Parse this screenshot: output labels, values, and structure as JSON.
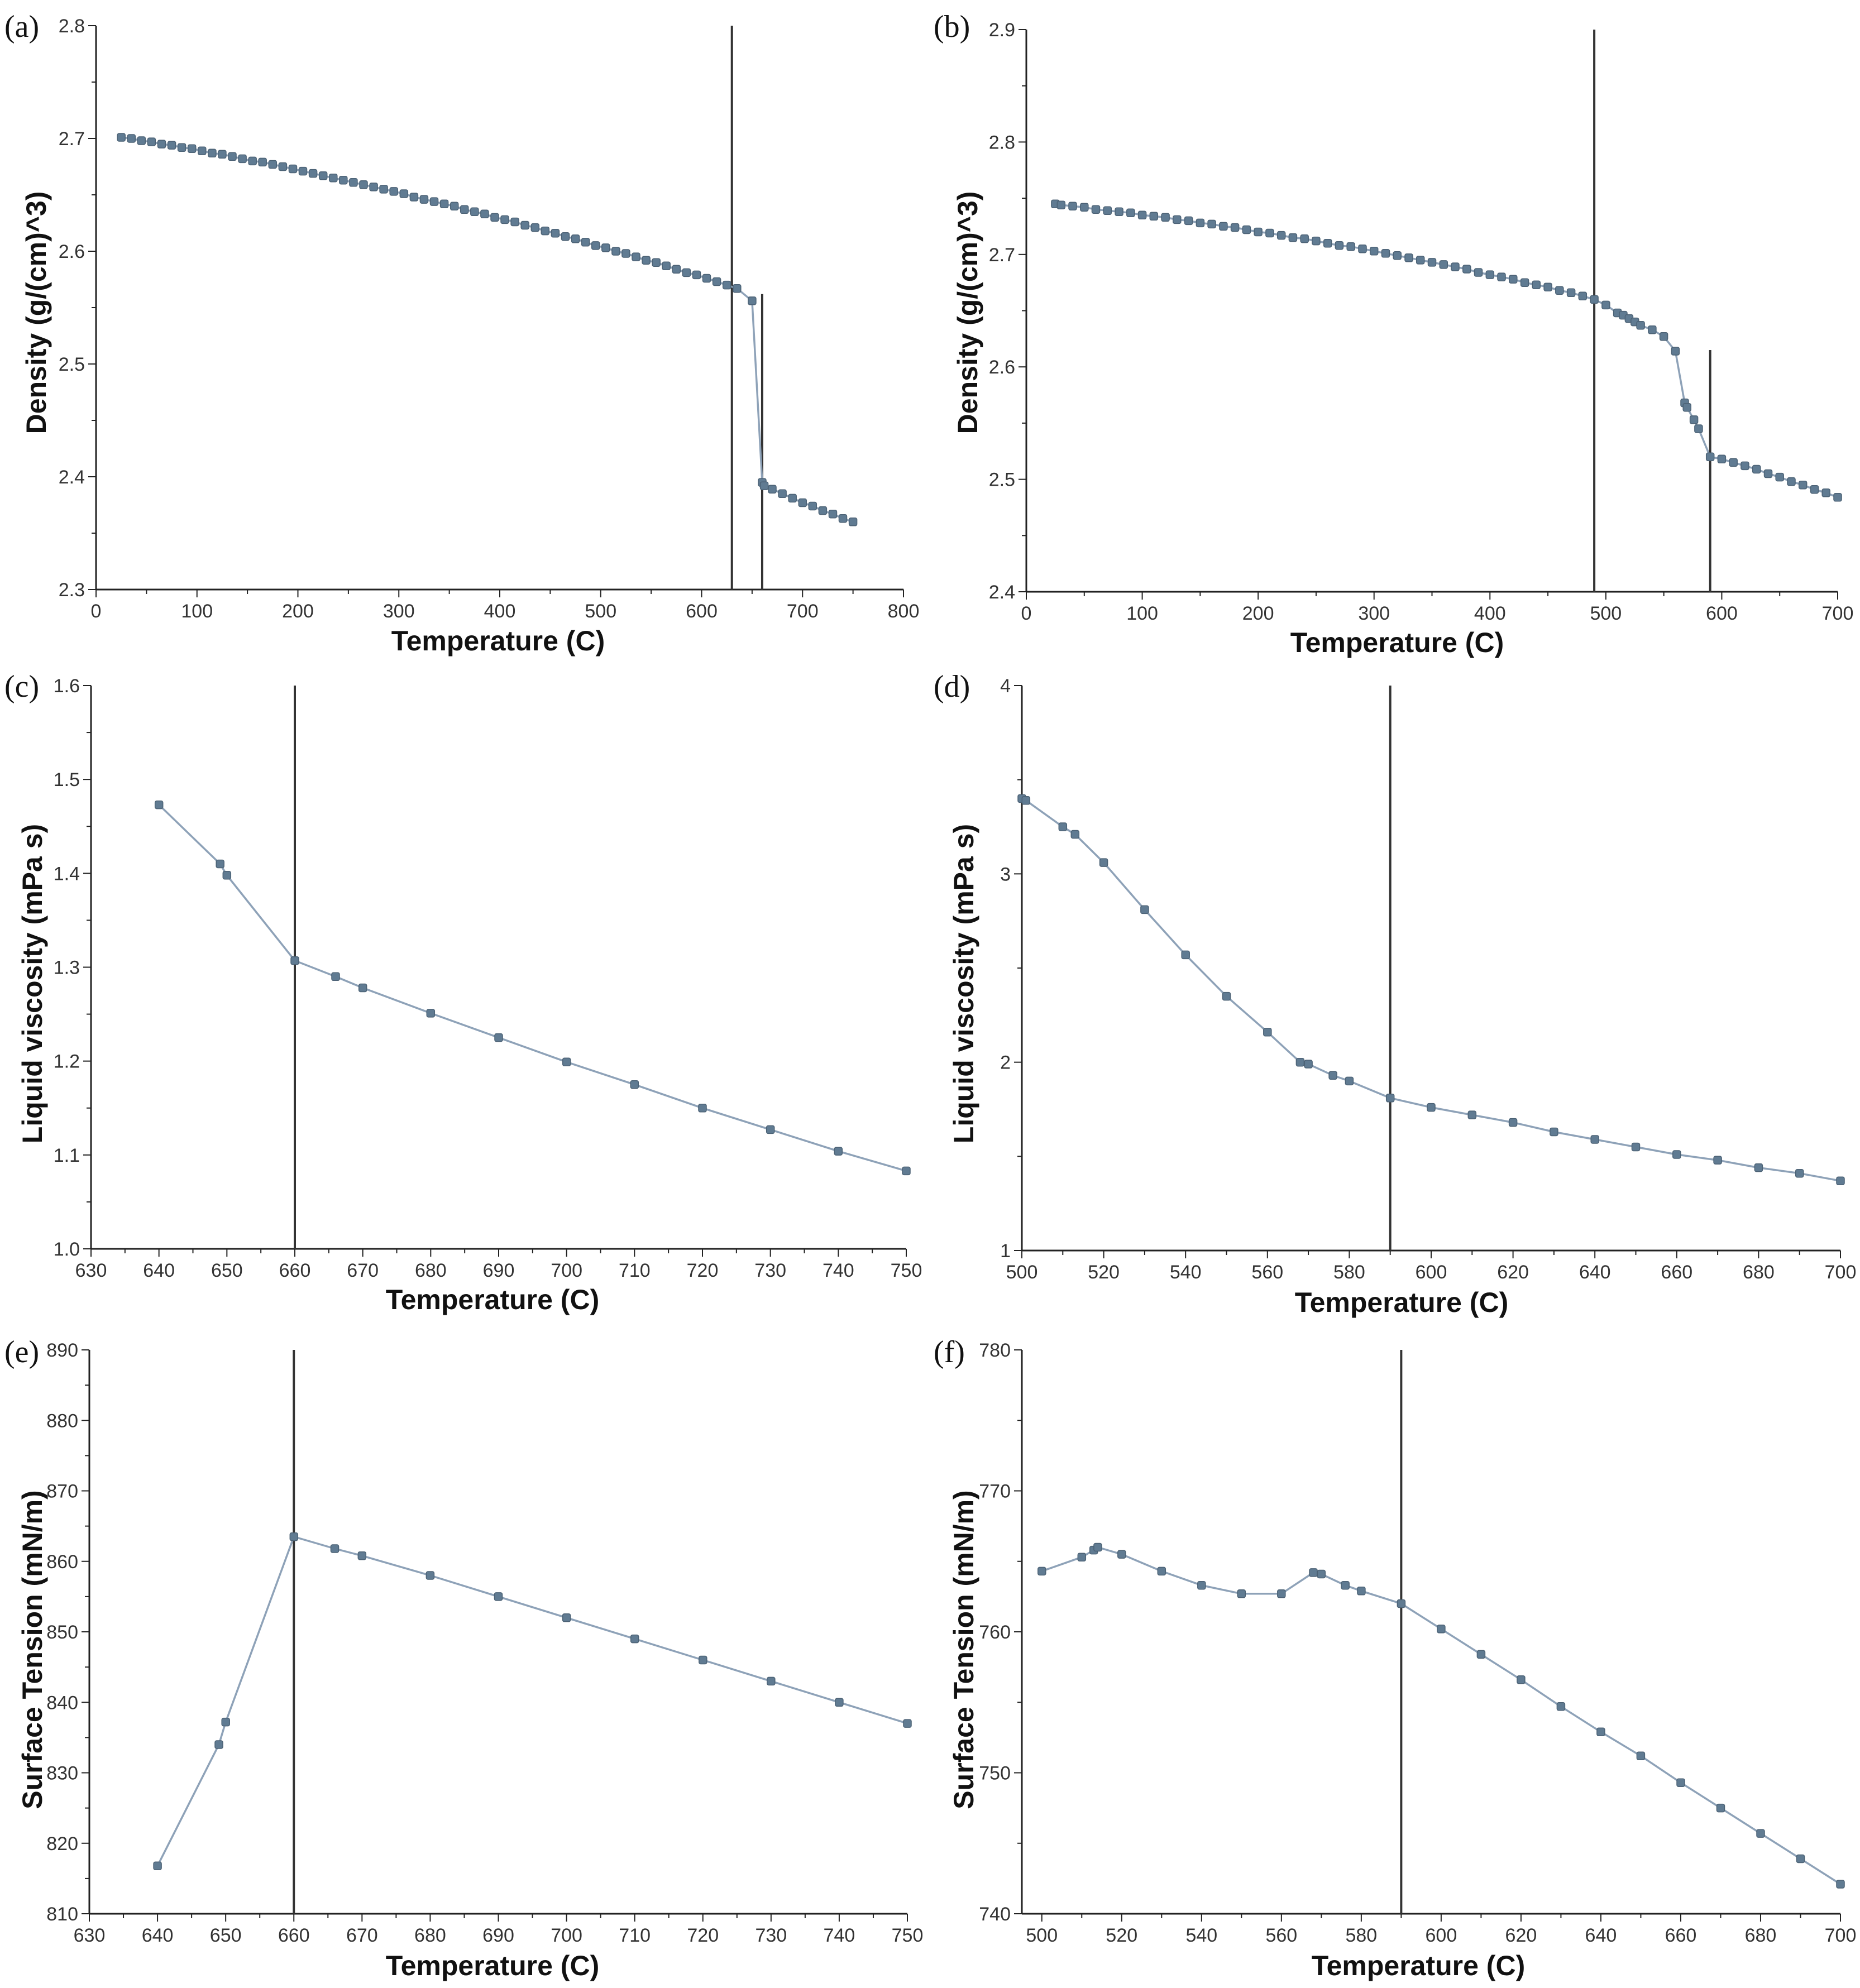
{
  "figure": {
    "panels": [
      {
        "letter": "(a)",
        "xlabel": "Temperature (C)",
        "ylabel": "Density (g/(cm)^3)"
      },
      {
        "letter": "(b)",
        "xlabel": "Temperature (C)",
        "ylabel": "Density (g/(cm)^3)"
      },
      {
        "letter": "(c)",
        "xlabel": "Temperature (C)",
        "ylabel": "Liquid viscosity (mPa s)"
      },
      {
        "letter": "(d)",
        "xlabel": "Temperature (C)",
        "ylabel": "Liquid viscosity (mPa s)"
      },
      {
        "letter": "(e)",
        "xlabel": "Temperature (C)",
        "ylabel": "Surface Tension (mN/m)"
      },
      {
        "letter": "(f)",
        "xlabel": "Temperature (C)",
        "ylabel": "Surface Tension (mN/m)"
      }
    ]
  },
  "colors": {
    "line": "#8ea2b8",
    "marker": "#607b92",
    "vertical_line": "#333333"
  },
  "chart_data": [
    {
      "id": "a",
      "type": "line",
      "title": "",
      "xlabel": "Temperature (C)",
      "ylabel": "Density (g/(cm)^3)",
      "xlim": [
        0,
        800
      ],
      "ylim": [
        2.3,
        2.8
      ],
      "xticks": [
        0,
        100,
        200,
        300,
        400,
        500,
        600,
        700,
        800
      ],
      "yticks": [
        2.3,
        2.4,
        2.5,
        2.6,
        2.7,
        2.8
      ],
      "ytick_decimals": 1,
      "grid": false,
      "vertical_lines": [
        {
          "x": 630,
          "y_top": 2.8
        },
        {
          "x": 660,
          "y_top": 2.562
        }
      ],
      "series": [
        {
          "name": "Density",
          "x": [
            25,
            35,
            45,
            55,
            65,
            75,
            85,
            95,
            105,
            115,
            125,
            135,
            145,
            155,
            165,
            175,
            185,
            195,
            205,
            215,
            225,
            235,
            245,
            255,
            265,
            275,
            285,
            295,
            305,
            315,
            325,
            335,
            345,
            355,
            365,
            375,
            385,
            395,
            405,
            415,
            425,
            435,
            445,
            455,
            465,
            475,
            485,
            495,
            505,
            515,
            525,
            535,
            545,
            555,
            565,
            575,
            585,
            595,
            605,
            615,
            625,
            635,
            650,
            660,
            662,
            670,
            680,
            690,
            700,
            710,
            720,
            730,
            740,
            750
          ],
          "y": [
            2.701,
            2.7,
            2.698,
            2.697,
            2.695,
            2.694,
            2.692,
            2.691,
            2.689,
            2.687,
            2.686,
            2.684,
            2.682,
            2.68,
            2.679,
            2.677,
            2.675,
            2.673,
            2.671,
            2.669,
            2.667,
            2.665,
            2.663,
            2.661,
            2.659,
            2.657,
            2.655,
            2.653,
            2.651,
            2.648,
            2.646,
            2.644,
            2.642,
            2.64,
            2.637,
            2.635,
            2.633,
            2.63,
            2.628,
            2.626,
            2.623,
            2.621,
            2.618,
            2.616,
            2.613,
            2.611,
            2.608,
            2.605,
            2.603,
            2.6,
            2.598,
            2.595,
            2.592,
            2.59,
            2.587,
            2.584,
            2.581,
            2.579,
            2.576,
            2.573,
            2.57,
            2.567,
            2.556,
            2.395,
            2.392,
            2.389,
            2.385,
            2.381,
            2.377,
            2.374,
            2.37,
            2.367,
            2.363,
            2.36
          ]
        }
      ]
    },
    {
      "id": "b",
      "type": "line",
      "title": "",
      "xlabel": "Temperature (C)",
      "ylabel": "Density (g/(cm)^3)",
      "xlim": [
        0,
        700
      ],
      "ylim": [
        2.4,
        2.9
      ],
      "xticks": [
        0,
        100,
        200,
        300,
        400,
        500,
        600,
        700
      ],
      "yticks": [
        2.4,
        2.5,
        2.6,
        2.7,
        2.8,
        2.9
      ],
      "ytick_decimals": 1,
      "grid": false,
      "vertical_lines": [
        {
          "x": 490,
          "y_top": 2.9
        },
        {
          "x": 590,
          "y_top": 2.615
        }
      ],
      "series": [
        {
          "name": "Density",
          "x": [
            25,
            30,
            40,
            50,
            60,
            70,
            80,
            90,
            100,
            110,
            120,
            130,
            140,
            150,
            160,
            170,
            180,
            190,
            200,
            210,
            220,
            230,
            240,
            250,
            260,
            270,
            280,
            290,
            300,
            310,
            320,
            330,
            340,
            350,
            360,
            370,
            380,
            390,
            400,
            410,
            420,
            430,
            440,
            450,
            460,
            470,
            480,
            490,
            500,
            510,
            515,
            520,
            525,
            530,
            540,
            550,
            560,
            568,
            570,
            576,
            580,
            590,
            600,
            610,
            620,
            630,
            640,
            650,
            660,
            670,
            680,
            690,
            700
          ],
          "y": [
            2.745,
            2.744,
            2.743,
            2.742,
            2.74,
            2.739,
            2.738,
            2.737,
            2.735,
            2.734,
            2.733,
            2.731,
            2.73,
            2.728,
            2.727,
            2.725,
            2.724,
            2.722,
            2.72,
            2.719,
            2.717,
            2.715,
            2.714,
            2.712,
            2.71,
            2.708,
            2.707,
            2.705,
            2.703,
            2.701,
            2.699,
            2.697,
            2.695,
            2.693,
            2.691,
            2.689,
            2.687,
            2.684,
            2.682,
            2.68,
            2.678,
            2.675,
            2.673,
            2.671,
            2.668,
            2.666,
            2.663,
            2.66,
            2.655,
            2.648,
            2.646,
            2.643,
            2.64,
            2.637,
            2.633,
            2.627,
            2.614,
            2.568,
            2.564,
            2.553,
            2.545,
            2.52,
            2.518,
            2.515,
            2.512,
            2.509,
            2.505,
            2.502,
            2.498,
            2.495,
            2.491,
            2.488,
            2.484
          ]
        }
      ]
    },
    {
      "id": "c",
      "type": "line",
      "title": "",
      "xlabel": "Temperature (C)",
      "ylabel": "Liquid viscosity (mPa s)",
      "xlim": [
        630,
        750
      ],
      "ylim": [
        1.0,
        1.6
      ],
      "xticks": [
        630,
        640,
        650,
        660,
        670,
        680,
        690,
        700,
        710,
        720,
        730,
        740,
        750
      ],
      "yticks": [
        1.0,
        1.1,
        1.2,
        1.3,
        1.4,
        1.5,
        1.6
      ],
      "ytick_decimals": 1,
      "grid": false,
      "vertical_lines": [
        {
          "x": 660,
          "y_top": 1.6
        }
      ],
      "series": [
        {
          "name": "Liquid viscosity",
          "x": [
            640,
            649,
            650,
            660,
            666,
            670,
            680,
            690,
            700,
            710,
            720,
            730,
            740,
            750
          ],
          "y": [
            1.473,
            1.41,
            1.398,
            1.307,
            1.29,
            1.278,
            1.251,
            1.225,
            1.199,
            1.175,
            1.15,
            1.127,
            1.104,
            1.083
          ]
        }
      ]
    },
    {
      "id": "d",
      "type": "line",
      "title": "",
      "xlabel": "Temperature (C)",
      "ylabel": "Liquid viscosity (mPa s)",
      "xlim": [
        500,
        700
      ],
      "ylim": [
        1,
        4
      ],
      "xticks": [
        500,
        520,
        540,
        560,
        580,
        600,
        620,
        640,
        660,
        680,
        700
      ],
      "yticks": [
        1,
        2,
        3,
        4
      ],
      "ytick_decimals": 0,
      "grid": false,
      "vertical_lines": [
        {
          "x": 590,
          "y_top": 4
        }
      ],
      "series": [
        {
          "name": "Liquid viscosity",
          "x": [
            500,
            501,
            510,
            513,
            520,
            530,
            540,
            550,
            560,
            568,
            570,
            576,
            580,
            590,
            600,
            610,
            620,
            630,
            640,
            650,
            660,
            670,
            680,
            690,
            700
          ],
          "y": [
            3.4,
            3.39,
            3.25,
            3.21,
            3.06,
            2.81,
            2.57,
            2.35,
            2.16,
            2.0,
            1.99,
            1.93,
            1.9,
            1.81,
            1.76,
            1.72,
            1.68,
            1.63,
            1.59,
            1.55,
            1.51,
            1.48,
            1.44,
            1.41,
            1.37
          ]
        }
      ]
    },
    {
      "id": "e",
      "type": "line",
      "title": "",
      "xlabel": "Temperature (C)",
      "ylabel": "Surface Tension (mN/m)",
      "xlim": [
        630,
        750
      ],
      "ylim": [
        810,
        890
      ],
      "xticks": [
        630,
        640,
        650,
        660,
        670,
        680,
        690,
        700,
        710,
        720,
        730,
        740,
        750
      ],
      "yticks": [
        810,
        820,
        830,
        840,
        850,
        860,
        870,
        880,
        890
      ],
      "ytick_decimals": 0,
      "grid": false,
      "vertical_lines": [
        {
          "x": 660,
          "y_top": 890
        }
      ],
      "series": [
        {
          "name": "Surface Tension",
          "x": [
            640,
            649,
            650,
            660,
            666,
            670,
            680,
            690,
            700,
            710,
            720,
            730,
            740,
            750
          ],
          "y": [
            816.8,
            834,
            837.2,
            863.5,
            861.8,
            860.8,
            858,
            855,
            852,
            849,
            846,
            843,
            840,
            837
          ]
        }
      ]
    },
    {
      "id": "f",
      "type": "line",
      "title": "",
      "xlabel": "Temperature (C)",
      "ylabel": "Surface Tension (mN/m)",
      "xlim": [
        495,
        700
      ],
      "ylim": [
        740,
        780
      ],
      "xticks": [
        500,
        520,
        540,
        560,
        580,
        600,
        620,
        640,
        660,
        680,
        700
      ],
      "yticks": [
        740,
        750,
        760,
        770,
        780
      ],
      "ytick_decimals": 0,
      "grid": false,
      "vertical_lines": [
        {
          "x": 590,
          "y_top": 780
        }
      ],
      "series": [
        {
          "name": "Surface Tension",
          "x": [
            500,
            510,
            513,
            514,
            520,
            530,
            540,
            550,
            560,
            568,
            570,
            576,
            580,
            590,
            600,
            610,
            620,
            630,
            640,
            650,
            660,
            670,
            680,
            690,
            700
          ],
          "y": [
            764.3,
            765.3,
            765.8,
            766,
            765.5,
            764.3,
            763.3,
            762.7,
            762.7,
            764.2,
            764.1,
            763.3,
            762.9,
            762,
            760.2,
            758.4,
            756.6,
            754.7,
            752.9,
            751.2,
            749.3,
            747.5,
            745.7,
            743.9,
            742.1
          ]
        }
      ]
    }
  ]
}
